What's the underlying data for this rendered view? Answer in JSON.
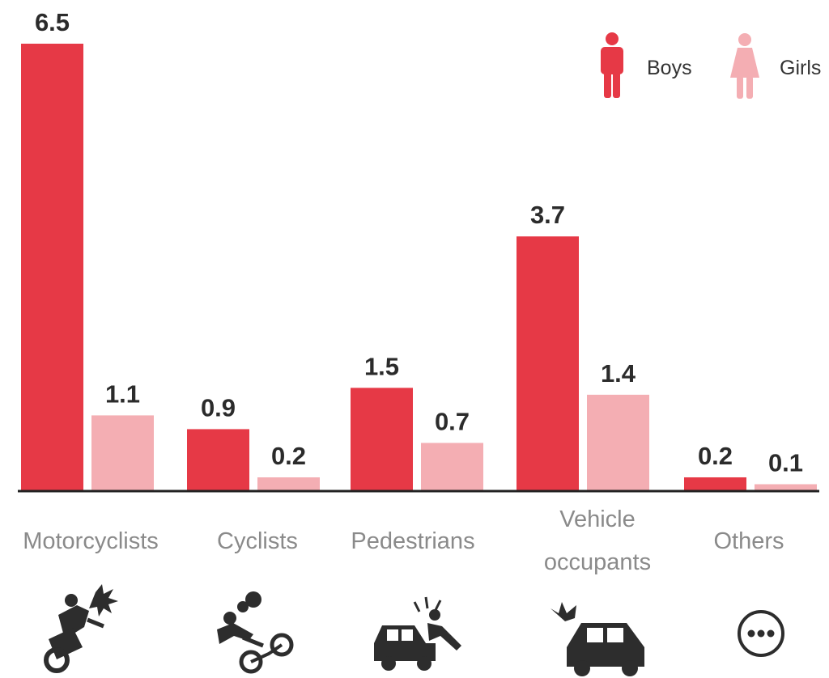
{
  "chart_data": {
    "type": "bar",
    "categories": [
      "Motorcyclists",
      "Cyclists",
      "Pedestrians",
      "Vehicle occupants",
      "Others"
    ],
    "series": [
      {
        "name": "Boys",
        "values": [
          6.5,
          0.9,
          1.5,
          3.7,
          0.2
        ]
      },
      {
        "name": "Girls",
        "values": [
          1.1,
          0.2,
          0.7,
          1.4,
          0.1
        ]
      }
    ],
    "ylim": [
      0,
      6.5
    ],
    "grid": false,
    "legend_position": "top-right"
  },
  "colors": {
    "boys": "#e63946",
    "girls": "#f4aeb3",
    "baseline": "#222222"
  },
  "icons": [
    "motorcyclist-crash-icon",
    "cyclist-crash-icon",
    "pedestrian-hit-icon",
    "vehicle-crash-icon",
    "more-icon"
  ]
}
